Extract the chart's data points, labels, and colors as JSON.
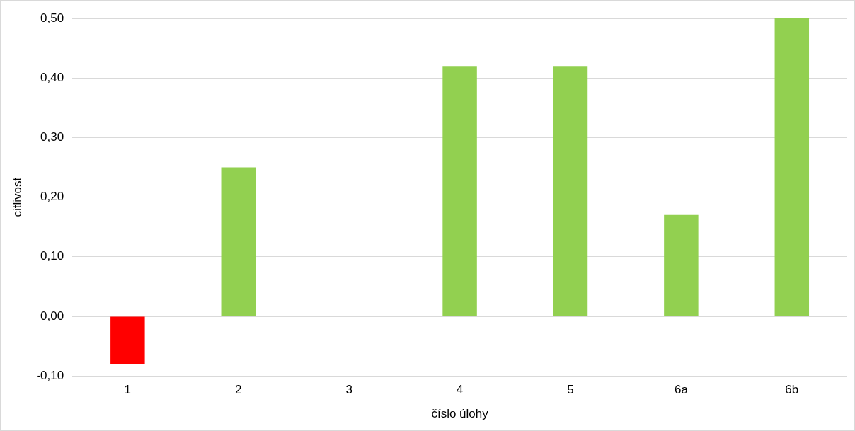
{
  "chart_data": {
    "type": "bar",
    "xlabel": "číslo úlohy",
    "ylabel": "citlivost",
    "categories": [
      "1",
      "2",
      "3",
      "4",
      "5",
      "6a",
      "6b"
    ],
    "values": [
      -0.08,
      0.25,
      0,
      0.42,
      0.42,
      0.17,
      0.5
    ],
    "colors": [
      "#ff0000",
      "#92d050",
      "#92d050",
      "#92d050",
      "#92d050",
      "#92d050",
      "#92d050"
    ],
    "ylim": [
      -0.1,
      0.5
    ],
    "yticks": [
      {
        "value": -0.1,
        "label": "-0,10"
      },
      {
        "value": 0,
        "label": "0,00"
      },
      {
        "value": 0.1,
        "label": "0,10"
      },
      {
        "value": 0.2,
        "label": "0,20"
      },
      {
        "value": 0.3,
        "label": "0,30"
      },
      {
        "value": 0.4,
        "label": "0,40"
      },
      {
        "value": 0.5,
        "label": "0,50"
      }
    ],
    "grid": "y",
    "legend": false
  }
}
